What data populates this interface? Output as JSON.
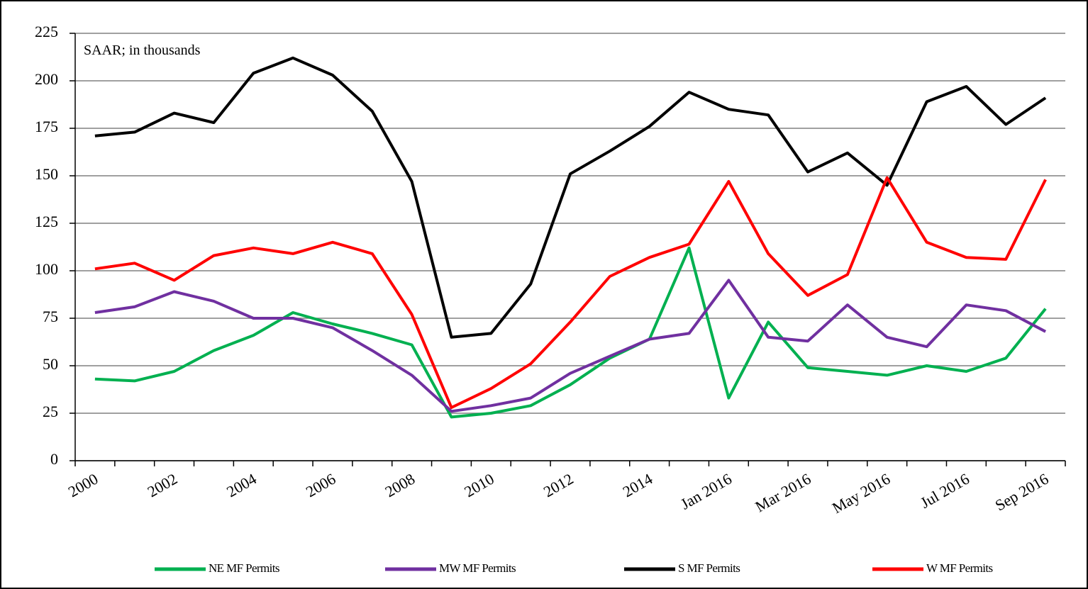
{
  "chart_data": {
    "type": "line",
    "annotation": "SAAR; in thousands",
    "categories": [
      "2000",
      null,
      "2002",
      null,
      "2004",
      null,
      "2006",
      null,
      "2008",
      null,
      "2010",
      null,
      "2012",
      null,
      "2014",
      null,
      "Jan 2016",
      null,
      "Mar 2016",
      null,
      "May 2016",
      null,
      "Jul 2016",
      null,
      "Sep 2016"
    ],
    "series": [
      {
        "name": "NE MF Permits",
        "color": "#00b050",
        "values": [
          43,
          42,
          47,
          58,
          66,
          78,
          72,
          67,
          61,
          23,
          25,
          29,
          40,
          54,
          64,
          112,
          33,
          73,
          49,
          47,
          45,
          50,
          47,
          54,
          80
        ]
      },
      {
        "name": "MW MF Permits",
        "color": "#7030a0",
        "values": [
          78,
          81,
          89,
          84,
          75,
          75,
          70,
          58,
          45,
          26,
          29,
          33,
          46,
          55,
          64,
          67,
          95,
          65,
          63,
          82,
          65,
          60,
          82,
          79,
          68
        ]
      },
      {
        "name": "S MF Permits",
        "color": "#000000",
        "values": [
          171,
          173,
          183,
          178,
          204,
          212,
          203,
          184,
          147,
          65,
          67,
          93,
          151,
          163,
          176,
          194,
          185,
          182,
          152,
          162,
          145,
          189,
          197,
          177,
          191
        ]
      },
      {
        "name": "W MF Permits",
        "color": "#ff0000",
        "values": [
          101,
          104,
          95,
          108,
          112,
          109,
          115,
          109,
          77,
          28,
          38,
          51,
          73,
          97,
          107,
          114,
          147,
          109,
          87,
          98,
          149,
          115,
          107,
          106,
          148
        ]
      }
    ],
    "ylim": [
      0,
      225
    ],
    "yticks": [
      0,
      25,
      50,
      75,
      100,
      125,
      150,
      175,
      200,
      225
    ],
    "grid": true,
    "legend": "bottom"
  }
}
